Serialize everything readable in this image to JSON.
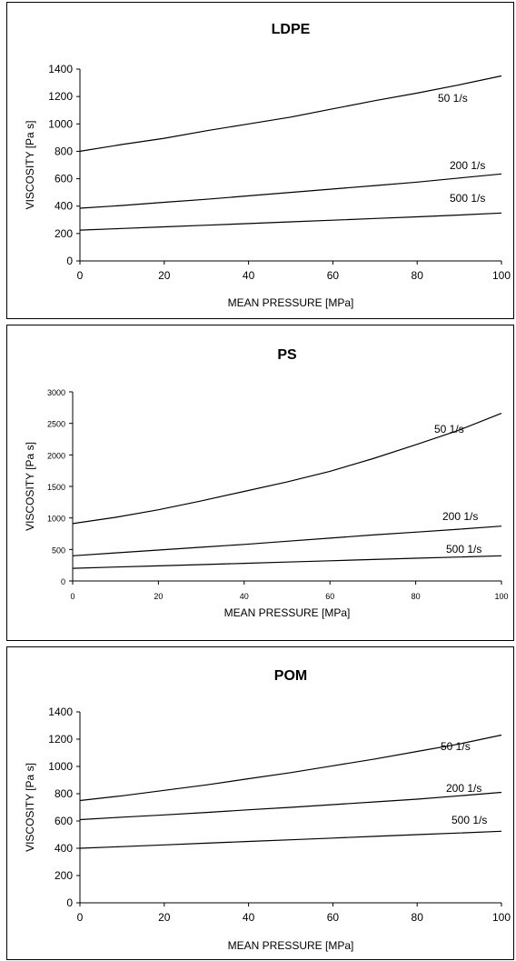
{
  "chart_data": [
    {
      "type": "line",
      "title": "LDPE",
      "xlabel": "MEAN PRESSURE  [MPa]",
      "ylabel": "VISCOSITY  [Pa s]",
      "xlim": [
        0,
        100
      ],
      "ylim": [
        0,
        1400
      ],
      "xticks": [
        "0",
        "20",
        "40",
        "60",
        "80",
        "100"
      ],
      "yticks": [
        "0",
        "200",
        "400",
        "600",
        "800",
        "1000",
        "1200",
        "1400"
      ],
      "grid": false,
      "series": [
        {
          "name": "50 1/s",
          "x": [
            0,
            10,
            20,
            30,
            40,
            50,
            60,
            70,
            80,
            90,
            100
          ],
          "y": [
            800,
            850,
            895,
            950,
            1000,
            1050,
            1110,
            1170,
            1225,
            1285,
            1350
          ]
        },
        {
          "name": "200 1/s",
          "x": [
            0,
            10,
            20,
            30,
            40,
            50,
            60,
            70,
            80,
            90,
            100
          ],
          "y": [
            385,
            405,
            428,
            450,
            475,
            500,
            525,
            550,
            575,
            605,
            635
          ]
        },
        {
          "name": "500 1/s",
          "x": [
            0,
            10,
            20,
            30,
            40,
            50,
            60,
            70,
            80,
            90,
            100
          ],
          "y": [
            225,
            237,
            249,
            261,
            273,
            285,
            297,
            310,
            322,
            335,
            350
          ]
        }
      ]
    },
    {
      "type": "line",
      "title": "PS",
      "xlabel": "MEAN PRESSURE  [MPa]",
      "ylabel": "VISCOSITY [Pa s]",
      "xlim": [
        0,
        100
      ],
      "ylim": [
        0,
        3000
      ],
      "xticks": [
        "0",
        "20",
        "40",
        "60",
        "80",
        "100"
      ],
      "yticks": [
        "0",
        "500",
        "1000",
        "1500",
        "2000",
        "2500",
        "3000"
      ],
      "grid": false,
      "series": [
        {
          "name": "50 1/s",
          "x": [
            0,
            10,
            20,
            30,
            40,
            50,
            60,
            70,
            80,
            90,
            100
          ],
          "y": [
            910,
            1010,
            1130,
            1270,
            1420,
            1570,
            1740,
            1940,
            2160,
            2390,
            2660
          ]
        },
        {
          "name": "200 1/s",
          "x": [
            0,
            10,
            20,
            30,
            40,
            50,
            60,
            70,
            80,
            90,
            100
          ],
          "y": [
            400,
            445,
            490,
            535,
            580,
            630,
            680,
            730,
            775,
            820,
            870
          ]
        },
        {
          "name": "500 1/s",
          "x": [
            0,
            10,
            20,
            30,
            40,
            50,
            60,
            70,
            80,
            90,
            100
          ],
          "y": [
            200,
            220,
            240,
            260,
            280,
            300,
            320,
            340,
            360,
            380,
            400
          ]
        }
      ]
    },
    {
      "type": "line",
      "title": "POM",
      "xlabel": "MEAN PRESSURE  [MPa]",
      "ylabel": "VISCOSITY  [Pa s]",
      "xlim": [
        0,
        100
      ],
      "ylim": [
        0,
        1400
      ],
      "xticks": [
        "0",
        "20",
        "40",
        "60",
        "80",
        "100"
      ],
      "yticks": [
        "0",
        "200",
        "400",
        "600",
        "800",
        "1000",
        "1200",
        "1400"
      ],
      "grid": false,
      "series": [
        {
          "name": "50 1/s",
          "x": [
            0,
            10,
            20,
            30,
            40,
            50,
            60,
            70,
            80,
            90,
            100
          ],
          "y": [
            750,
            785,
            825,
            865,
            910,
            955,
            1005,
            1055,
            1110,
            1165,
            1230
          ]
        },
        {
          "name": "200 1/s",
          "x": [
            0,
            10,
            20,
            30,
            40,
            50,
            60,
            70,
            80,
            90,
            100
          ],
          "y": [
            610,
            628,
            645,
            663,
            682,
            700,
            720,
            740,
            760,
            785,
            810
          ]
        },
        {
          "name": "500 1/s",
          "x": [
            0,
            10,
            20,
            30,
            40,
            50,
            60,
            70,
            80,
            90,
            100
          ],
          "y": [
            400,
            412,
            425,
            437,
            450,
            462,
            475,
            487,
            500,
            512,
            525
          ]
        }
      ]
    }
  ]
}
